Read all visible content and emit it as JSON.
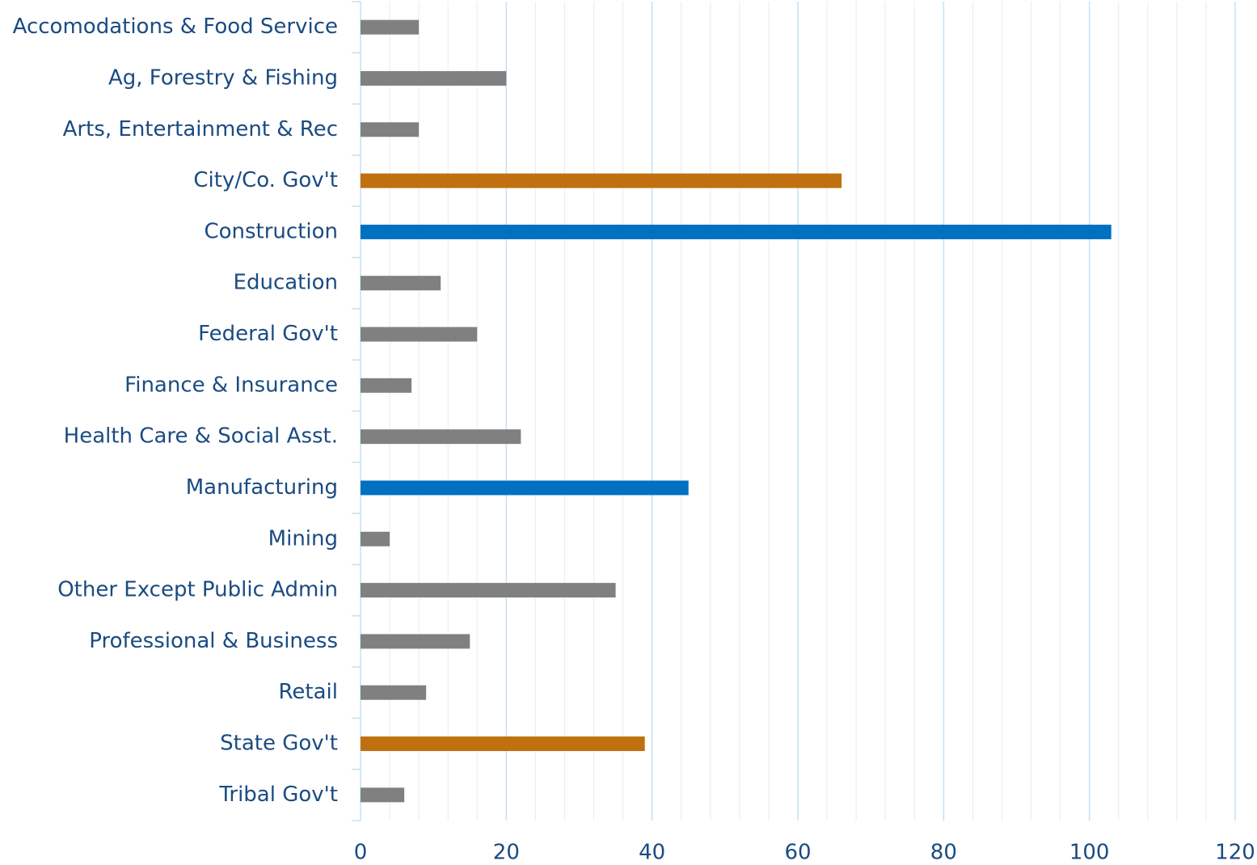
{
  "chart_data": {
    "type": "barh",
    "categories": [
      "Accomodations & Food Service",
      "Ag, Forestry & Fishing",
      "Arts, Entertainment & Rec",
      "City/Co. Gov't",
      "Construction",
      "Education",
      "Federal Gov't",
      "Finance & Insurance",
      "Health Care & Social Asst.",
      "Manufacturing",
      "Mining",
      "Other Except Public Admin",
      "Professional & Business",
      "Retail",
      "State Gov't",
      "Tribal Gov't"
    ],
    "values": [
      8,
      20,
      8,
      66,
      103,
      11,
      16,
      7,
      22,
      45,
      4,
      35,
      15,
      9,
      39,
      6
    ],
    "colors": [
      "#808080",
      "#808080",
      "#808080",
      "#c0700f",
      "#0070c0",
      "#808080",
      "#808080",
      "#808080",
      "#808080",
      "#0070c0",
      "#808080",
      "#808080",
      "#808080",
      "#808080",
      "#c0700f",
      "#808080"
    ],
    "xlim": [
      0,
      120
    ],
    "xticks": [
      0,
      20,
      40,
      60,
      80,
      100,
      120
    ],
    "grid": true,
    "minor_grid_step": 4
  }
}
